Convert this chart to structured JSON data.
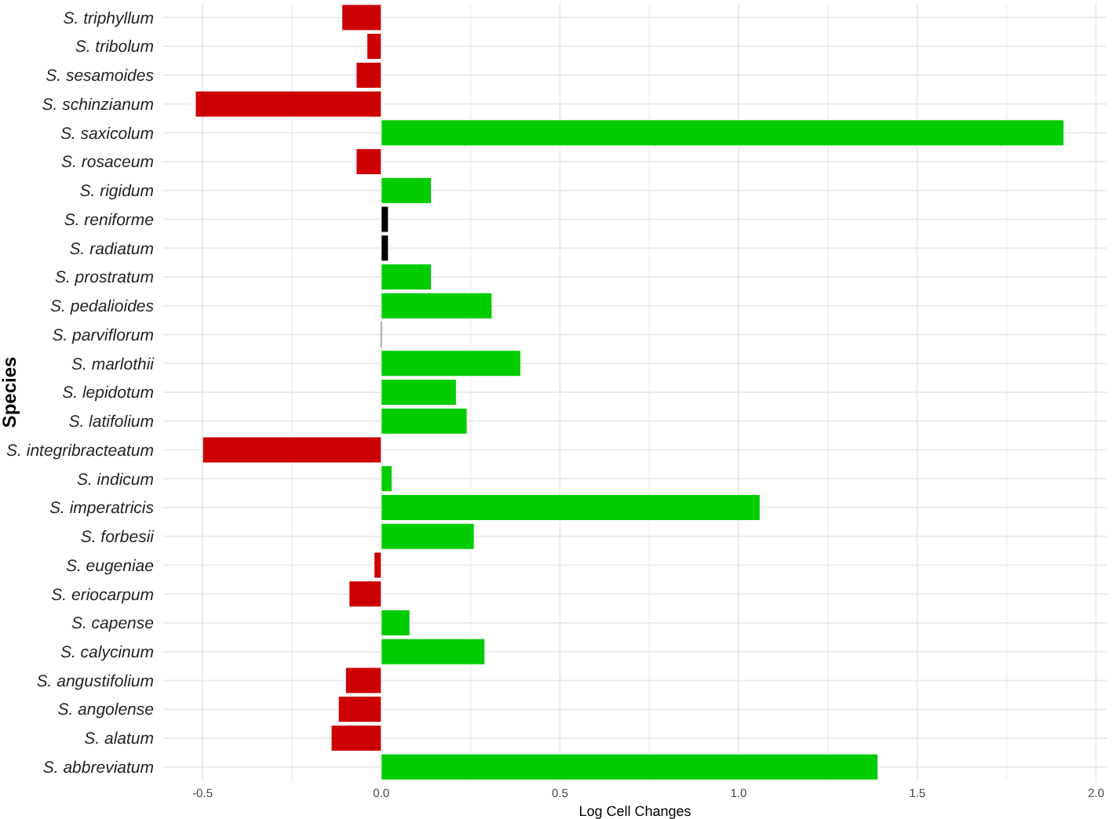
{
  "chart_data": {
    "type": "bar",
    "orientation": "horizontal",
    "xlabel": "Log Cell Changes",
    "ylabel": "Species",
    "categories": [
      "S. triphyllum",
      "S. tribolum",
      "S. sesamoides",
      "S. schinzianum",
      "S. saxicolum",
      "S. rosaceum",
      "S. rigidum",
      "S. reniforme",
      "S. radiatum",
      "S. prostratum",
      "S. pedalioides",
      "S. parviflorum",
      "S. marlothii",
      "S. lepidotum",
      "S. latifolium",
      "S. integribracteatum",
      "S. indicum",
      "S. imperatricis",
      "S. forbesii",
      "S. eugeniae",
      "S. eriocarpum",
      "S. capense",
      "S. calycinum",
      "S. angustifolium",
      "S. angolense",
      "S. alatum",
      "S. abbreviatum"
    ],
    "values": [
      -0.11,
      -0.04,
      -0.07,
      -0.52,
      1.91,
      -0.07,
      0.14,
      0.02,
      0.02,
      0.14,
      0.31,
      0,
      0.39,
      0.21,
      0.24,
      -0.5,
      0.03,
      1.06,
      0.26,
      -0.02,
      -0.09,
      0.08,
      0.29,
      -0.1,
      -0.12,
      -0.14,
      1.39
    ],
    "colors": [
      "#cc0000",
      "#cc0000",
      "#cc0000",
      "#cc0000",
      "#00cc00",
      "#cc0000",
      "#00cc00",
      "#000000",
      "#000000",
      "#00cc00",
      "#00cc00",
      "#aaaaaa",
      "#00cc00",
      "#00cc00",
      "#00cc00",
      "#cc0000",
      "#00cc00",
      "#00cc00",
      "#00cc00",
      "#cc0000",
      "#cc0000",
      "#00cc00",
      "#00cc00",
      "#cc0000",
      "#cc0000",
      "#cc0000",
      "#00cc00"
    ],
    "xlim": [
      -0.61,
      2.03
    ],
    "xticks": [
      -0.5,
      {
        "value": -0.25,
        "label": null
      },
      {
        "value": 0,
        "label": "0.0"
      },
      {
        "value": 0.25,
        "label": null
      },
      0.5,
      {
        "value": 0.75,
        "label": null
      },
      {
        "value": 1,
        "label": "1.0"
      },
      {
        "value": 1.25,
        "label": null
      },
      1.5,
      {
        "value": 1.75,
        "label": null
      },
      {
        "value": 2,
        "label": "2.0"
      }
    ],
    "grid": true
  }
}
